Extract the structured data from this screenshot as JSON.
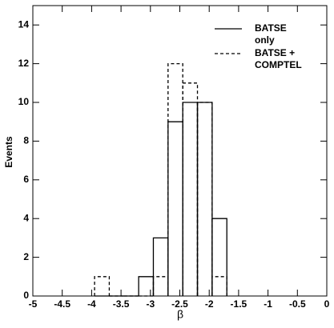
{
  "chart_data": {
    "type": "histogram",
    "xlabel": "β",
    "ylabel": "Events",
    "bins": [
      -3.95,
      -3.7,
      -3.45,
      -3.2,
      -2.95,
      -2.7,
      -2.45,
      -2.2,
      -1.95,
      -1.7
    ],
    "series": [
      {
        "name": [
          "BATSE",
          "only"
        ],
        "color": "#000000",
        "dash": false,
        "values": [
          0,
          0,
          0,
          1,
          3,
          9,
          10,
          10,
          4
        ]
      },
      {
        "name": [
          "BATSE +",
          "COMPTEL"
        ],
        "color": "#000000",
        "dash": true,
        "values": [
          1,
          0,
          0,
          0,
          1,
          12,
          11,
          10,
          1
        ]
      }
    ],
    "xlim": [
      -5,
      0
    ],
    "xticks": [
      -5,
      -4.5,
      -4,
      -3.5,
      -3,
      -2.5,
      -2,
      -1.5,
      -1,
      -0.5,
      0
    ],
    "ylim": [
      0,
      15
    ],
    "yticks": [
      0,
      2,
      4,
      6,
      8,
      10,
      12,
      14
    ],
    "legend": "upper right"
  }
}
